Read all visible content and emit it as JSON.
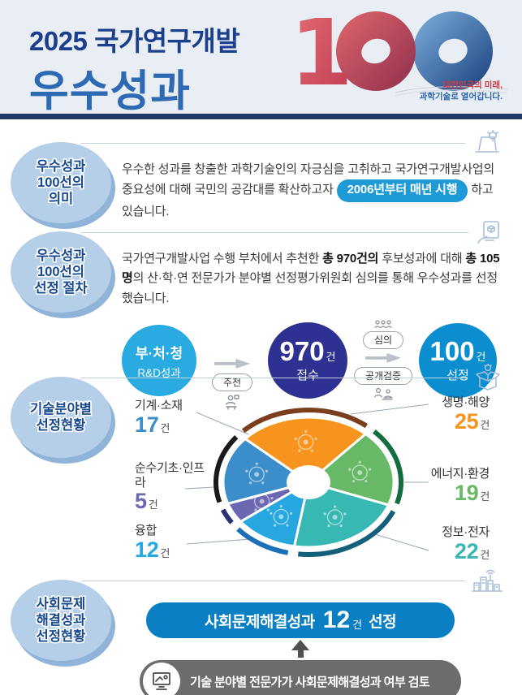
{
  "header": {
    "title_line1": "2025 국가연구개발",
    "title_line2": "우수성과",
    "logo_number": "100",
    "tagline_line1": "대한민국의 미래,",
    "tagline_line2": "과학기술로 열어갑니다."
  },
  "colors": {
    "header_bg": "#e9eef5",
    "navy_bar": "#1f3864",
    "title_navy": "#1c3f8d",
    "title_blue": "#2d6ab3",
    "badge_fill": "#b6cfe9",
    "badge_text": "#17498f",
    "highlight_pill": "#1e9ad6",
    "flow_step1": "#29abe2",
    "flow_step2": "#2e3192",
    "flow_step3": "#0a8ed0",
    "result_pill": "#0b7fc4",
    "note_pill": "#6b6c6e",
    "logo_red": "#c13a52",
    "logo_blue": "#1c4a8c"
  },
  "section_meaning": {
    "badge_line1": "우수성과",
    "badge_line2": "100선의",
    "badge_line3": "의미",
    "text_before": "우수한 성과를 창출한 과학기술인의 자긍심을 고취하고 국가연구개발사업의 중요성에 대해 국민의 공감대를 확산하고자 ",
    "highlight_pill": "2006년부터 매년 시행",
    "text_after": " 하고 있습니다."
  },
  "section_process": {
    "badge_line1": "우수성과",
    "badge_line2": "100선의",
    "badge_line3": "선정 절차",
    "text_part1": "국가연구개발사업 수행 부처에서 추천한 ",
    "text_bold1": "총 970건의",
    "text_part2": " 후보성과에 대해 ",
    "text_bold2": "총 105명",
    "text_part3": "의 산·학·연 전문가가 분야별 선정평가위원회 심의를 통해 우수성과를 선정했습니다.",
    "flow": {
      "step1_line1": "부·처·청",
      "step1_line2": "R&D성과",
      "connector1_label": "추천",
      "step2_number": "970",
      "step2_unit": "건",
      "step2_label": "접수",
      "connector2_top_label": "심의",
      "connector2_bottom_label": "공개검증",
      "step3_number": "100",
      "step3_unit": "건",
      "step3_label": "선정"
    }
  },
  "section_fields": {
    "badge_line1": "기술분야별",
    "badge_line2": "선정현황",
    "unit": "건"
  },
  "chart_data": {
    "type": "pie",
    "title": "기술분야별 선정현황",
    "unit": "건",
    "total": 100,
    "donut": true,
    "start_angle_deg": -48,
    "legend_position": "around",
    "segments": [
      {
        "label": "생명·해양",
        "value": 25,
        "color": "#f7941e",
        "ring_color": "#7a3e1d"
      },
      {
        "label": "에너지·환경",
        "value": 19,
        "color": "#67b967",
        "ring_color": "#156c3f"
      },
      {
        "label": "정보·전자",
        "value": 22,
        "color": "#38b8b2",
        "ring_color": "#14607a"
      },
      {
        "label": "융합",
        "value": 12,
        "color": "#27a7e0",
        "ring_color": "#1c70b7"
      },
      {
        "label": "순수기초·인프라",
        "value": 5,
        "color": "#6b68b1",
        "ring_color": "#2b3176"
      },
      {
        "label": "기계·소재",
        "value": 17,
        "color": "#3c8ecb",
        "ring_color": "#1a1a1a"
      }
    ]
  },
  "section_social": {
    "badge_line1": "사회문제",
    "badge_line2": "해결성과",
    "badge_line3": "선정현황",
    "result_prefix": "사회문제해결성과",
    "result_number": "12",
    "result_unit": "건",
    "result_suffix": "선정",
    "note_text": "기술 분야별 전문가가 사회문제해결성과 여부 검토"
  }
}
